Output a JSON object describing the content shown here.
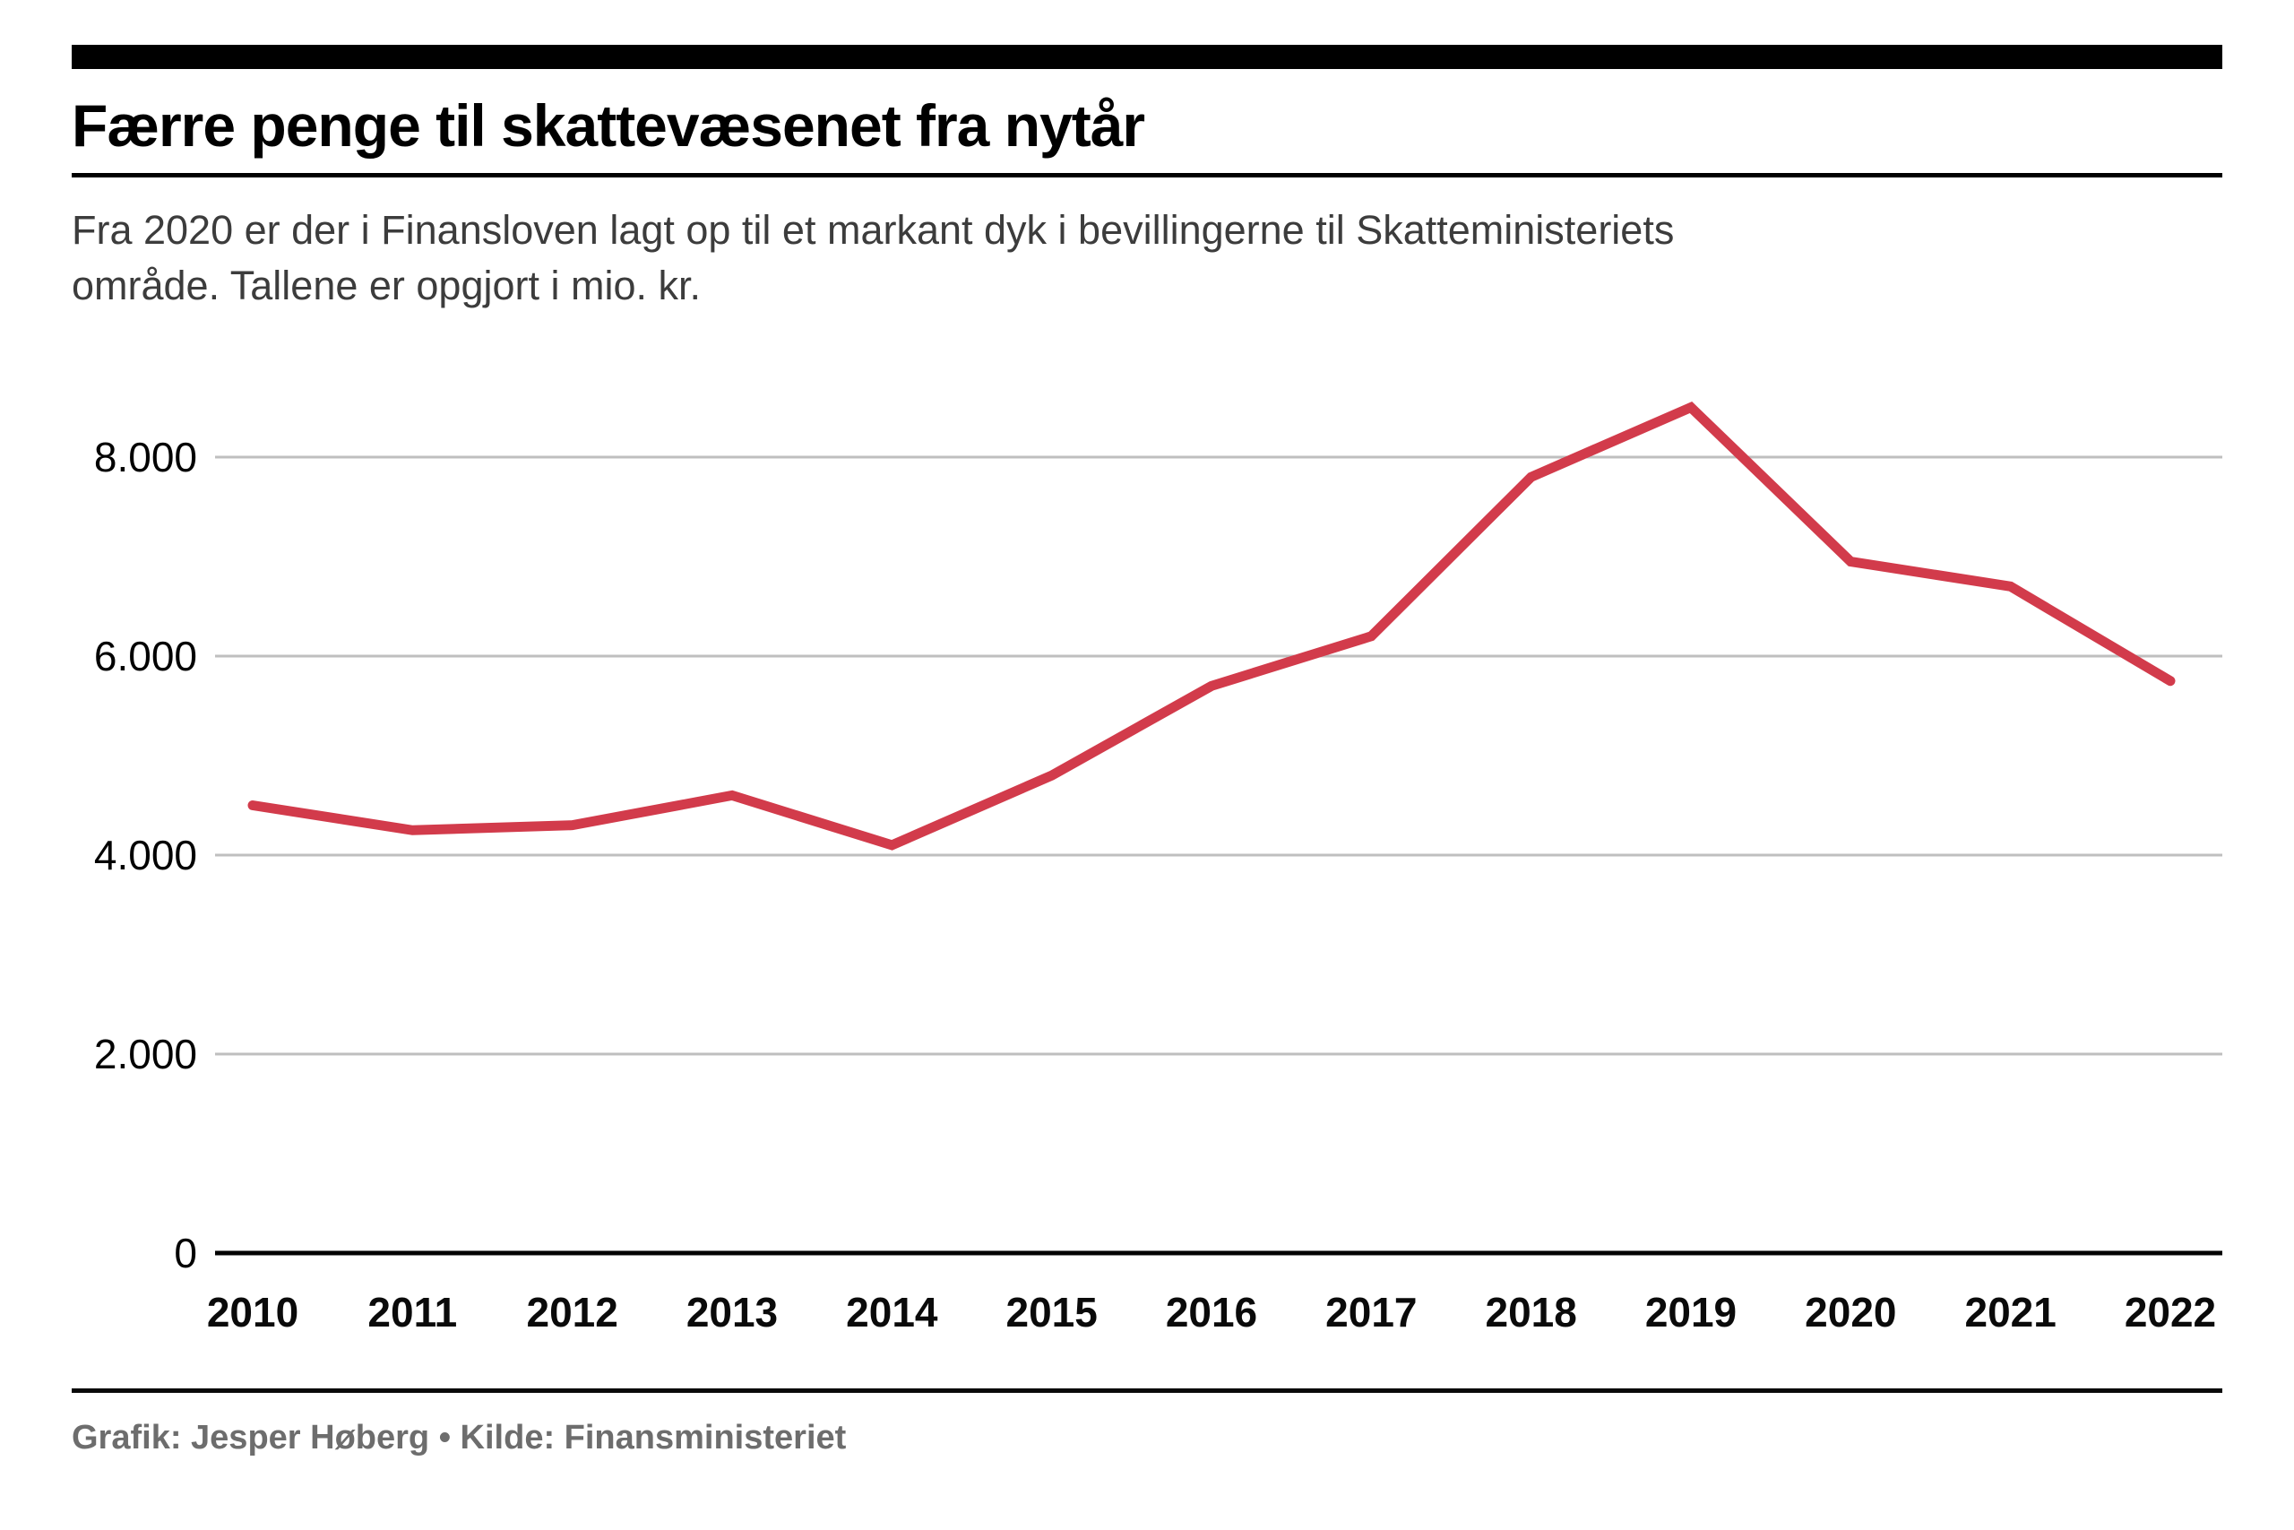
{
  "page": {
    "title": "Færre penge til skattevæsenet fra nytår",
    "subtitle_line1": "Fra 2020 er der i Finansloven lagt op til et markant dyk i bevillingerne til Skatteministeriets",
    "subtitle_line2": "område. Tallene er opgjort i mio. kr.",
    "footer": "Grafik: Jesper Høberg • Kilde: Finansministeriet"
  },
  "colors": {
    "line": "#d23b4b",
    "grid": "#bfbfbf",
    "axis": "#000000",
    "title": "#000000",
    "subtitle": "#3c3c3c",
    "footer": "#6d6d6d"
  },
  "chart_data": {
    "type": "line",
    "title": "Færre penge til skattevæsenet fra nytår",
    "subtitle": "Fra 2020 er der i Finansloven lagt op til et markant dyk i bevillingerne til Skatteministeriets område. Tallene er opgjort i mio. kr.",
    "categories": [
      "2010",
      "2011",
      "2012",
      "2013",
      "2014",
      "2015",
      "2016",
      "2017",
      "2018",
      "2019",
      "2020",
      "2021",
      "2022"
    ],
    "values": [
      4500,
      4250,
      4300,
      4600,
      4100,
      4800,
      5700,
      6200,
      7800,
      8500,
      6950,
      6700,
      5750
    ],
    "unit": "mio. kr.",
    "xlabel": "",
    "ylabel": "mio. kr.",
    "ylim": [
      0,
      8900
    ],
    "yticks": [
      0,
      2000,
      4000,
      6000,
      8000
    ],
    "ytick_labels": [
      "0",
      "2.000",
      "4.000",
      "6.000",
      "8.000"
    ],
    "grid": true,
    "legend": false,
    "line_color": "#d23b4b"
  }
}
